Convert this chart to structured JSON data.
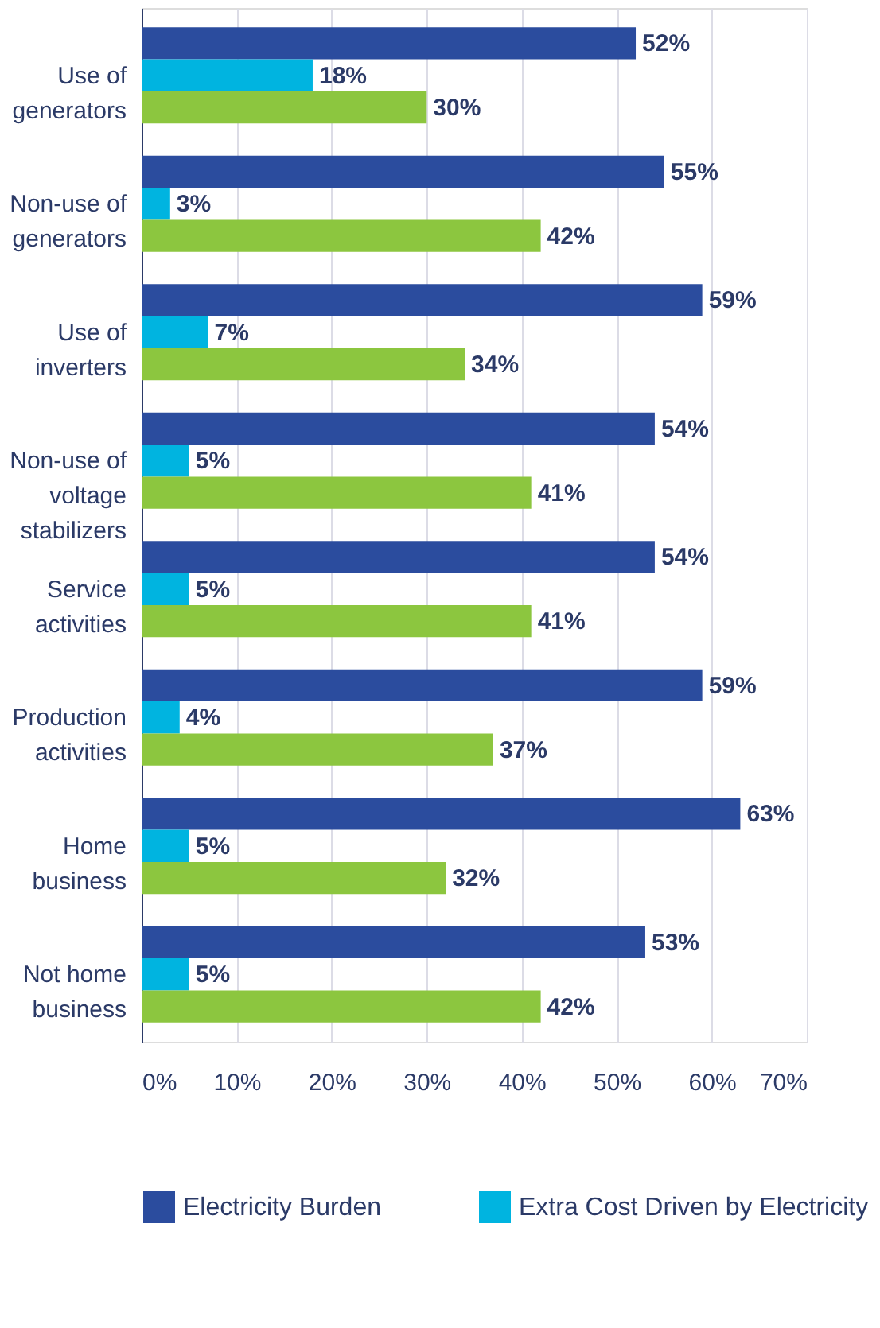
{
  "chart_data": {
    "type": "bar",
    "orientation": "horizontal",
    "categories": [
      "Use of\ngenerators",
      "Non-use of\ngenerators",
      "Use of\ninverters",
      "Non-use of\nvoltage\nstabilizers",
      "Service\nactivities",
      "Production\nactivities",
      "Home\nbusiness",
      "Not home\nbusiness"
    ],
    "series": [
      {
        "name": "Electricity Burden",
        "color": "#2b4c9e",
        "values": [
          52,
          55,
          59,
          54,
          54,
          59,
          63,
          53
        ],
        "value_labels": [
          "52%",
          "55%",
          "59%",
          "54%",
          "54%",
          "59%",
          "63%",
          "53%"
        ]
      },
      {
        "name": "Extra Cost Driven by Electricity",
        "color": "#00b4e0",
        "values": [
          18,
          3,
          7,
          5,
          5,
          4,
          5,
          5
        ],
        "value_labels": [
          "18%",
          "3%",
          "7%",
          "5%",
          "5%",
          "4%",
          "5%",
          "5%"
        ]
      },
      {
        "color": "#8cc63f",
        "values": [
          30,
          42,
          34,
          41,
          41,
          37,
          32,
          42
        ],
        "value_labels": [
          "30%",
          "42%",
          "34%",
          "41%",
          "41%",
          "37%",
          "32%",
          "42%"
        ]
      }
    ],
    "xlim": [
      0,
      70
    ],
    "xticks": [
      {
        "value": 0,
        "label": "0%"
      },
      {
        "value": 10,
        "label": "10%"
      },
      {
        "value": 20,
        "label": "20%"
      },
      {
        "value": 30,
        "label": "30%"
      },
      {
        "value": 40,
        "label": "40%"
      },
      {
        "value": 50,
        "label": "50%"
      },
      {
        "value": 60,
        "label": "60%"
      },
      {
        "value": 70,
        "label": "70%"
      }
    ],
    "grid": "x",
    "legend": "bottom"
  }
}
